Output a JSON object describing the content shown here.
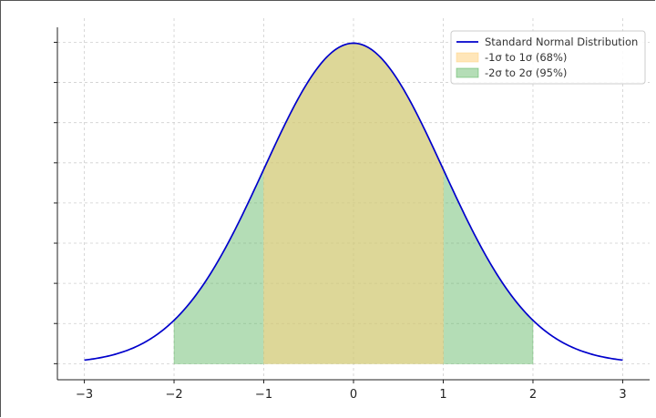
{
  "chart_data": {
    "type": "area",
    "title": "",
    "xlabel": "",
    "ylabel": "",
    "xlim": [
      -3.3,
      3.3
    ],
    "ylim": [
      -0.02,
      0.43
    ],
    "xticks": [
      -3,
      -2,
      -1,
      0,
      1,
      2,
      3
    ],
    "xtick_labels": [
      "−3",
      "−2",
      "−1",
      "0",
      "1",
      "2",
      "3"
    ],
    "yticks": [
      0.0,
      0.05,
      0.1,
      0.15,
      0.2,
      0.25,
      0.3,
      0.35,
      0.4
    ],
    "ytick_labels_shown": false,
    "grid": true,
    "legend_placement": "top-right",
    "series": [
      {
        "name": "Standard Normal Distribution",
        "kind": "line",
        "color": "#0000cc",
        "x": [
          -3.0,
          -2.75,
          -2.5,
          -2.25,
          -2.0,
          -1.75,
          -1.5,
          -1.25,
          -1.0,
          -0.75,
          -0.5,
          -0.25,
          0.0,
          0.25,
          0.5,
          0.75,
          1.0,
          1.25,
          1.5,
          1.75,
          2.0,
          2.25,
          2.5,
          2.75,
          3.0
        ],
        "y": [
          0.0044,
          0.0091,
          0.0175,
          0.0317,
          0.054,
          0.0863,
          0.1295,
          0.1826,
          0.242,
          0.3011,
          0.3521,
          0.3867,
          0.3989,
          0.3867,
          0.3521,
          0.3011,
          0.242,
          0.1826,
          0.1295,
          0.0863,
          0.054,
          0.0317,
          0.0175,
          0.0091,
          0.0044
        ]
      },
      {
        "name": "-1σ to 1σ (68%)",
        "kind": "fill",
        "from": -1,
        "to": 1,
        "color": "#ffd27f",
        "opacity": 0.55
      },
      {
        "name": "-2σ to 2σ (95%)",
        "kind": "fill",
        "from": -2,
        "to": 2,
        "color": "#4caf50",
        "opacity": 0.42
      }
    ]
  }
}
